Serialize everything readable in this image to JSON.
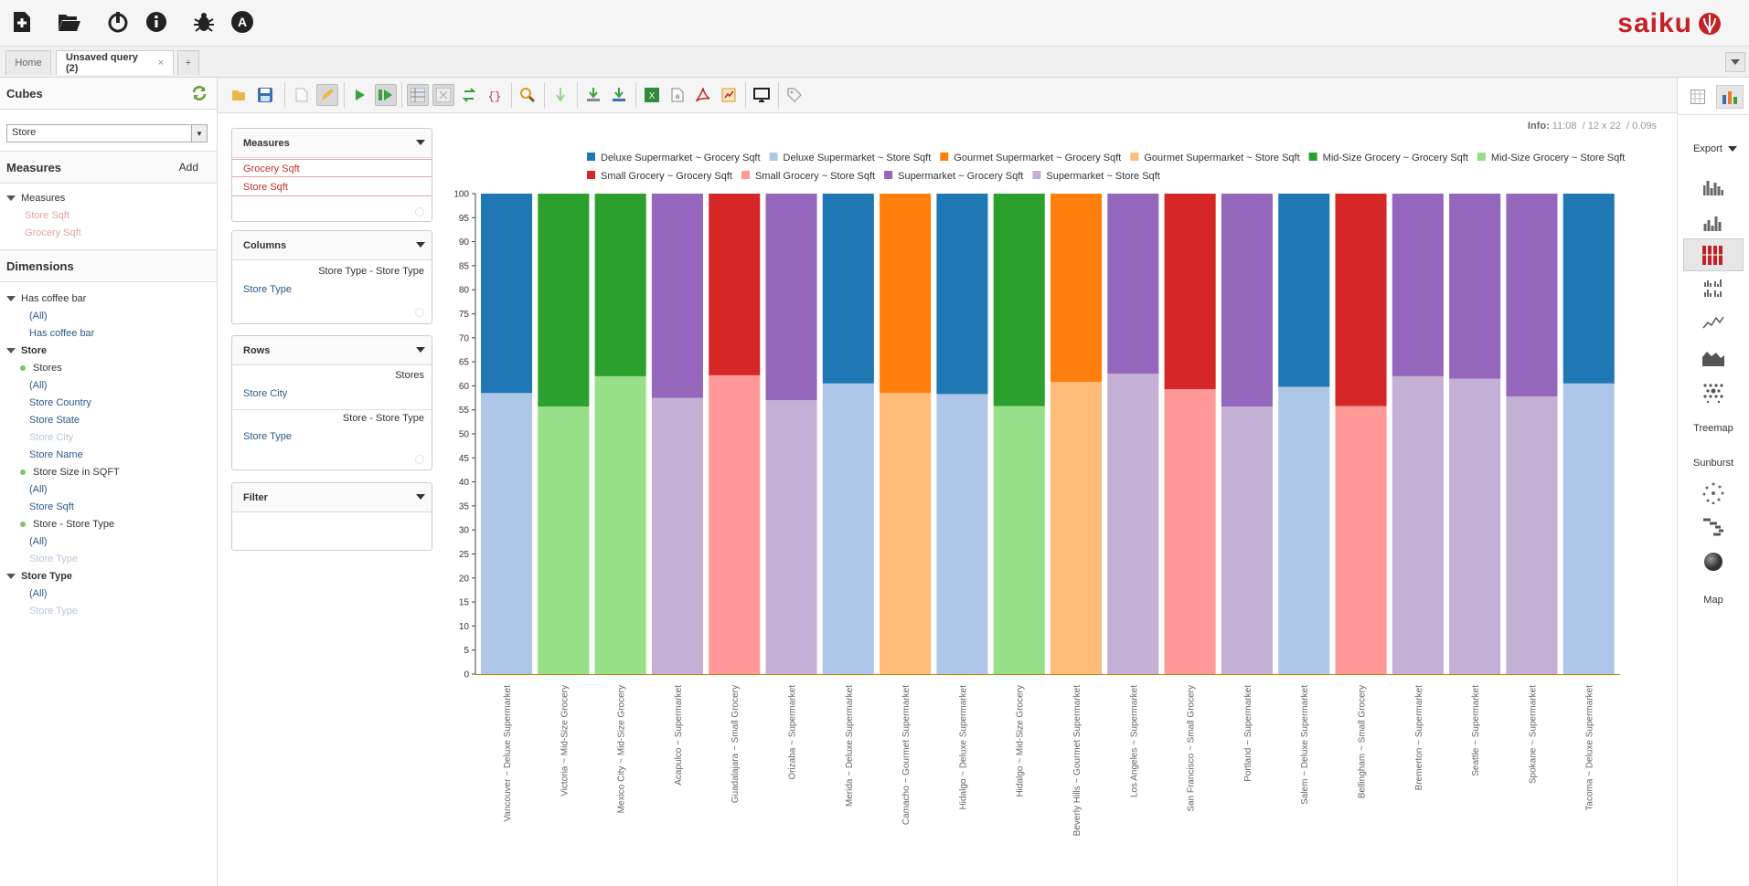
{
  "app": {
    "name": "saiku"
  },
  "topbar": {
    "icons": [
      "new-query-icon",
      "open-query-icon",
      "logout-icon",
      "info-icon",
      "bug-icon",
      "admin-icon"
    ]
  },
  "tabs": {
    "home": "Home",
    "active": "Unsaved query (2)",
    "close": "×",
    "add": "+"
  },
  "cubes": {
    "title": "Cubes",
    "selected": "Store"
  },
  "measures": {
    "title": "Measures",
    "add": "Add",
    "group": "Measures",
    "items": [
      "Store Sqft",
      "Grocery Sqft"
    ]
  },
  "dimensions": {
    "title": "Dimensions",
    "coffee": {
      "name": "Has coffee bar",
      "all": "(All)",
      "level": "Has coffee bar"
    },
    "store": {
      "name": "Store",
      "stores": "Stores",
      "all": "(All)",
      "country": "Store Country",
      "state": "Store State",
      "city": "Store City",
      "sname": "Store Name",
      "size": "Store Size in SQFT",
      "size_all": "(All)",
      "sqft": "Store Sqft",
      "stype": "Store - Store Type",
      "stype_all": "(All)",
      "stype_level": "Store Type"
    },
    "storetype": {
      "name": "Store Type",
      "all": "(All)",
      "level": "Store Type"
    }
  },
  "workspace": {
    "measures_box": {
      "title": "Measures",
      "items": [
        "Grocery Sqft",
        "Store Sqft"
      ]
    },
    "columns_box": {
      "title": "Columns",
      "hierarchy": "Store Type - Store Type",
      "level": "Store Type"
    },
    "rows_box": {
      "title": "Rows",
      "h1": "Stores",
      "l1": "Store City",
      "h2": "Store - Store Type",
      "l2": "Store Type"
    },
    "filter_box": {
      "title": "Filter"
    }
  },
  "info": {
    "label": "Info:",
    "time": "11:08",
    "dims": "12 x 22",
    "duration": "0.09s"
  },
  "rightbar": {
    "export": "Export",
    "treemap": "Treemap",
    "sunburst": "Sunburst",
    "map": "Map"
  },
  "colors": {
    "accent": "#c42027"
  },
  "chart_data": {
    "type": "bar",
    "stacked": true,
    "normalized": true,
    "ylim": [
      0,
      100
    ],
    "yticks": [
      0,
      5,
      10,
      15,
      20,
      25,
      30,
      35,
      40,
      45,
      50,
      55,
      60,
      65,
      70,
      75,
      80,
      85,
      90,
      95,
      100
    ],
    "legend": [
      {
        "name": "Deluxe Supermarket ~ Grocery Sqft",
        "color": "#1f77b4"
      },
      {
        "name": "Deluxe Supermarket ~ Store Sqft",
        "color": "#aec7e8"
      },
      {
        "name": "Gourmet Supermarket ~ Grocery Sqft",
        "color": "#ff7f0e"
      },
      {
        "name": "Gourmet Supermarket ~ Store Sqft",
        "color": "#ffbb78"
      },
      {
        "name": "Mid-Size Grocery ~ Grocery Sqft",
        "color": "#2ca02c"
      },
      {
        "name": "Mid-Size Grocery ~ Store Sqft",
        "color": "#98df8a"
      },
      {
        "name": "Small Grocery ~ Grocery Sqft",
        "color": "#d62728"
      },
      {
        "name": "Small Grocery ~ Store Sqft",
        "color": "#ff9896"
      },
      {
        "name": "Supermarket ~ Grocery Sqft",
        "color": "#9467bd"
      },
      {
        "name": "Supermarket ~ Store Sqft",
        "color": "#c5b0d5"
      }
    ],
    "bars": [
      {
        "label": "Vancouver ~ Deluxe Supermarket",
        "lower": 58.5,
        "lowerColor": "#aec7e8",
        "upperColor": "#1f77b4"
      },
      {
        "label": "Victoria ~ Mid-Size Grocery",
        "lower": 55.7,
        "lowerColor": "#98df8a",
        "upperColor": "#2ca02c"
      },
      {
        "label": "Mexico City ~ Mid-Size Grocery",
        "lower": 62.0,
        "lowerColor": "#98df8a",
        "upperColor": "#2ca02c"
      },
      {
        "label": "Acapulco ~ Supermarket",
        "lower": 57.5,
        "lowerColor": "#c5b0d5",
        "upperColor": "#9467bd"
      },
      {
        "label": "Guadalajara ~ Small Grocery",
        "lower": 62.2,
        "lowerColor": "#ff9896",
        "upperColor": "#d62728"
      },
      {
        "label": "Orizaba ~ Supermarket",
        "lower": 57.0,
        "lowerColor": "#c5b0d5",
        "upperColor": "#9467bd"
      },
      {
        "label": "Merida ~ Deluxe Supermarket",
        "lower": 60.5,
        "lowerColor": "#aec7e8",
        "upperColor": "#1f77b4"
      },
      {
        "label": "Camacho ~ Gourmet Supermarket",
        "lower": 58.5,
        "lowerColor": "#ffbb78",
        "upperColor": "#ff7f0e"
      },
      {
        "label": "Hidalgo ~ Deluxe Supermarket",
        "lower": 58.3,
        "lowerColor": "#aec7e8",
        "upperColor": "#1f77b4"
      },
      {
        "label": "Hidalgo ~ Mid-Size Grocery",
        "lower": 55.8,
        "lowerColor": "#98df8a",
        "upperColor": "#2ca02c"
      },
      {
        "label": "Beverly Hills ~ Gourmet Supermarket",
        "lower": 60.8,
        "lowerColor": "#ffbb78",
        "upperColor": "#ff7f0e"
      },
      {
        "label": "Los Angeles ~ Supermarket",
        "lower": 62.5,
        "lowerColor": "#c5b0d5",
        "upperColor": "#9467bd"
      },
      {
        "label": "San Francisco ~ Small Grocery",
        "lower": 59.3,
        "lowerColor": "#ff9896",
        "upperColor": "#d62728"
      },
      {
        "label": "Portland ~ Supermarket",
        "lower": 55.7,
        "lowerColor": "#c5b0d5",
        "upperColor": "#9467bd"
      },
      {
        "label": "Salem ~ Deluxe Supermarket",
        "lower": 59.8,
        "lowerColor": "#aec7e8",
        "upperColor": "#1f77b4"
      },
      {
        "label": "Bellingham ~ Small Grocery",
        "lower": 55.8,
        "lowerColor": "#ff9896",
        "upperColor": "#d62728"
      },
      {
        "label": "Bremerton ~ Supermarket",
        "lower": 62.0,
        "lowerColor": "#c5b0d5",
        "upperColor": "#9467bd"
      },
      {
        "label": "Seattle ~ Supermarket",
        "lower": 61.5,
        "lowerColor": "#c5b0d5",
        "upperColor": "#9467bd"
      },
      {
        "label": "Spokane ~ Supermarket",
        "lower": 57.8,
        "lowerColor": "#c5b0d5",
        "upperColor": "#9467bd"
      },
      {
        "label": "Tacoma ~ Deluxe Supermarket",
        "lower": 60.5,
        "lowerColor": "#aec7e8",
        "upperColor": "#1f77b4"
      }
    ]
  }
}
